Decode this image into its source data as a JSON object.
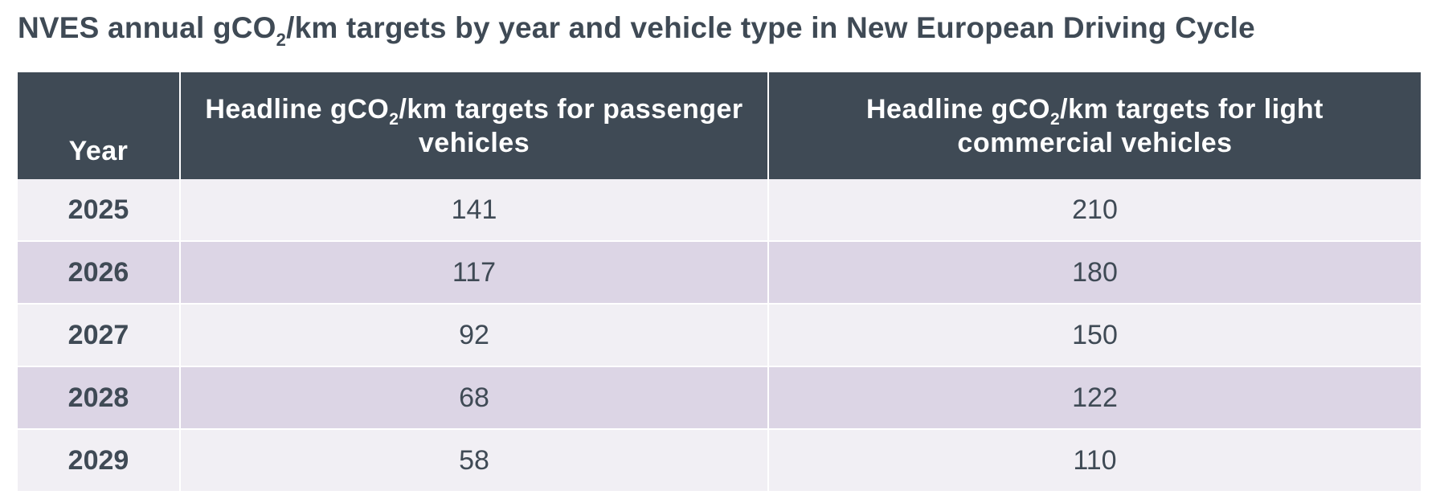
{
  "title": {
    "before": "NVES annual gCO",
    "sub": "2",
    "after": "/km targets by year and vehicle type in New European Driving Cycle"
  },
  "table": {
    "headers": {
      "year": "Year",
      "passenger": {
        "before": "Headline gCO",
        "sub": "2",
        "after": "/km targets for passenger vehicles"
      },
      "lcv": {
        "before": "Headline gCO",
        "sub": "2",
        "after": "/km targets for light commercial vehicles"
      }
    },
    "rows": [
      {
        "year": "2025",
        "passenger": "141",
        "lcv": "210"
      },
      {
        "year": "2026",
        "passenger": "117",
        "lcv": "180"
      },
      {
        "year": "2027",
        "passenger": "92",
        "lcv": "150"
      },
      {
        "year": "2028",
        "passenger": "68",
        "lcv": "122"
      },
      {
        "year": "2029",
        "passenger": "58",
        "lcv": "110"
      }
    ]
  },
  "colors": {
    "header_bg": "#3f4a55",
    "text": "#3f4a55",
    "row_light": "#f1eff4",
    "row_shaded": "#dcd5e5"
  }
}
